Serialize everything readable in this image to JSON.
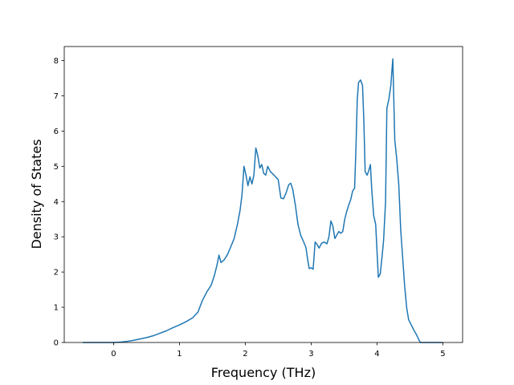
{
  "chart_data": {
    "type": "line",
    "title": "",
    "xlabel": "Frequency (THz)",
    "ylabel": "Density of States",
    "xlim": [
      -0.75,
      5.3
    ],
    "ylim": [
      0,
      8.4
    ],
    "x_ticks": [
      0,
      1,
      2,
      3,
      4,
      5
    ],
    "y_ticks": [
      0,
      1,
      2,
      3,
      4,
      5,
      6,
      7,
      8
    ],
    "grid": false,
    "legend": "none",
    "series": [
      {
        "color": "#1f77b4",
        "points": [
          [
            -0.47,
            0.0
          ],
          [
            -0.2,
            0.0
          ],
          [
            0.0,
            0.0
          ],
          [
            0.1,
            0.01
          ],
          [
            0.2,
            0.03
          ],
          [
            0.3,
            0.06
          ],
          [
            0.4,
            0.1
          ],
          [
            0.5,
            0.14
          ],
          [
            0.6,
            0.19
          ],
          [
            0.7,
            0.26
          ],
          [
            0.8,
            0.33
          ],
          [
            0.9,
            0.42
          ],
          [
            1.0,
            0.5
          ],
          [
            1.1,
            0.59
          ],
          [
            1.2,
            0.7
          ],
          [
            1.28,
            0.86
          ],
          [
            1.35,
            1.2
          ],
          [
            1.42,
            1.45
          ],
          [
            1.48,
            1.62
          ],
          [
            1.53,
            1.9
          ],
          [
            1.57,
            2.2
          ],
          [
            1.6,
            2.48
          ],
          [
            1.63,
            2.27
          ],
          [
            1.68,
            2.35
          ],
          [
            1.73,
            2.5
          ],
          [
            1.78,
            2.72
          ],
          [
            1.83,
            2.95
          ],
          [
            1.88,
            3.35
          ],
          [
            1.92,
            3.75
          ],
          [
            1.95,
            4.2
          ],
          [
            1.98,
            5.0
          ],
          [
            2.01,
            4.75
          ],
          [
            2.04,
            4.45
          ],
          [
            2.07,
            4.7
          ],
          [
            2.1,
            4.5
          ],
          [
            2.13,
            4.75
          ],
          [
            2.16,
            5.52
          ],
          [
            2.19,
            5.3
          ],
          [
            2.22,
            4.95
          ],
          [
            2.25,
            5.05
          ],
          [
            2.28,
            4.8
          ],
          [
            2.31,
            4.75
          ],
          [
            2.34,
            5.0
          ],
          [
            2.38,
            4.85
          ],
          [
            2.42,
            4.78
          ],
          [
            2.46,
            4.7
          ],
          [
            2.5,
            4.62
          ],
          [
            2.54,
            4.1
          ],
          [
            2.58,
            4.08
          ],
          [
            2.62,
            4.25
          ],
          [
            2.66,
            4.48
          ],
          [
            2.69,
            4.52
          ],
          [
            2.72,
            4.35
          ],
          [
            2.76,
            3.9
          ],
          [
            2.8,
            3.35
          ],
          [
            2.84,
            3.05
          ],
          [
            2.88,
            2.88
          ],
          [
            2.92,
            2.7
          ],
          [
            2.95,
            2.32
          ],
          [
            2.97,
            2.1
          ],
          [
            3.0,
            2.12
          ],
          [
            3.03,
            2.08
          ],
          [
            3.06,
            2.85
          ],
          [
            3.09,
            2.78
          ],
          [
            3.12,
            2.68
          ],
          [
            3.16,
            2.82
          ],
          [
            3.2,
            2.85
          ],
          [
            3.24,
            2.8
          ],
          [
            3.27,
            3.0
          ],
          [
            3.3,
            3.45
          ],
          [
            3.33,
            3.3
          ],
          [
            3.36,
            2.95
          ],
          [
            3.39,
            3.05
          ],
          [
            3.42,
            3.15
          ],
          [
            3.45,
            3.1
          ],
          [
            3.48,
            3.15
          ],
          [
            3.51,
            3.5
          ],
          [
            3.54,
            3.72
          ],
          [
            3.57,
            3.9
          ],
          [
            3.6,
            4.05
          ],
          [
            3.63,
            4.3
          ],
          [
            3.66,
            4.38
          ],
          [
            3.68,
            5.5
          ],
          [
            3.7,
            6.9
          ],
          [
            3.72,
            7.38
          ],
          [
            3.75,
            7.45
          ],
          [
            3.78,
            7.3
          ],
          [
            3.8,
            6.3
          ],
          [
            3.82,
            4.85
          ],
          [
            3.85,
            4.75
          ],
          [
            3.87,
            4.85
          ],
          [
            3.9,
            5.05
          ],
          [
            3.92,
            4.35
          ],
          [
            3.95,
            3.6
          ],
          [
            3.98,
            3.35
          ],
          [
            4.0,
            2.6
          ],
          [
            4.02,
            1.85
          ],
          [
            4.05,
            1.95
          ],
          [
            4.08,
            2.5
          ],
          [
            4.1,
            2.9
          ],
          [
            4.13,
            4.0
          ],
          [
            4.15,
            6.65
          ],
          [
            4.18,
            6.9
          ],
          [
            4.21,
            7.3
          ],
          [
            4.24,
            8.05
          ],
          [
            4.27,
            5.75
          ],
          [
            4.3,
            5.2
          ],
          [
            4.33,
            4.5
          ],
          [
            4.36,
            3.2
          ],
          [
            4.39,
            2.4
          ],
          [
            4.42,
            1.6
          ],
          [
            4.45,
            1.0
          ],
          [
            4.48,
            0.65
          ],
          [
            4.52,
            0.5
          ],
          [
            4.56,
            0.35
          ],
          [
            4.6,
            0.22
          ],
          [
            4.64,
            0.06
          ],
          [
            4.66,
            0.0
          ],
          [
            4.8,
            0.0
          ],
          [
            5.0,
            0.0
          ]
        ]
      }
    ]
  }
}
